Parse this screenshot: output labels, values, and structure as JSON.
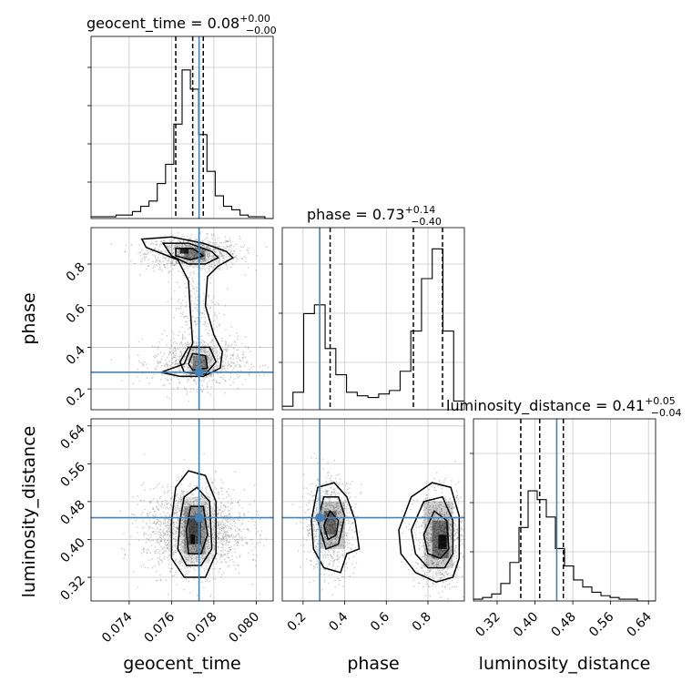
{
  "chart_data": {
    "type": "corner",
    "truth": {
      "geocent_time": 0.0773,
      "phase": 0.28,
      "luminosity_distance": 0.446
    },
    "titles": {
      "geocent_time": {
        "label": "geocent_time = ",
        "value": "0.08",
        "plus": "+0.00",
        "minus": "−0.00"
      },
      "phase": {
        "label": "phase = ",
        "value": "0.73",
        "plus": "+0.14",
        "minus": "−0.40"
      },
      "luminosity_distance": {
        "label": "luminosity_distance = ",
        "value": "0.41",
        "plus": "+0.05",
        "minus": "−0.04"
      }
    },
    "axis_labels": {
      "geocent_time": "geocent_time",
      "phase": "phase",
      "luminosity_distance": "luminosity_distance"
    },
    "ranges": {
      "geocent_time": [
        0.0722,
        0.0808
      ],
      "phase": [
        0.1,
        0.975
      ],
      "luminosity_distance": [
        0.27,
        0.655
      ]
    },
    "ticks": {
      "geocent_time": [
        "0.074",
        "0.076",
        "0.078",
        "0.080"
      ],
      "phase_x": [
        "0.2",
        "0.4",
        "0.6",
        "0.8"
      ],
      "phase_y": [
        "0.2",
        "0.4",
        "0.6",
        "0.8"
      ],
      "luminosity_distance": [
        "0.32",
        "0.40",
        "0.48",
        "0.56",
        "0.64"
      ]
    },
    "quantiles": {
      "geocent_time": [
        0.0762,
        0.077,
        0.0775
      ],
      "phase": [
        0.33,
        0.73,
        0.87
      ],
      "luminosity_distance": [
        0.37,
        0.41,
        0.46
      ]
    },
    "histograms": {
      "geocent_time": [
        0.01,
        0.01,
        0.01,
        0.02,
        0.02,
        0.04,
        0.07,
        0.1,
        0.2,
        0.31,
        0.54,
        0.85,
        0.74,
        0.48,
        0.27,
        0.13,
        0.07,
        0.05,
        0.02,
        0.01,
        0.01,
        0.0
      ],
      "phase": [
        0.02,
        0.1,
        0.55,
        0.6,
        0.35,
        0.2,
        0.1,
        0.08,
        0.07,
        0.09,
        0.11,
        0.22,
        0.45,
        0.75,
        0.92,
        0.45,
        0.05
      ],
      "luminosity_distance": [
        0.01,
        0.02,
        0.04,
        0.1,
        0.22,
        0.42,
        0.63,
        0.58,
        0.48,
        0.3,
        0.2,
        0.12,
        0.08,
        0.05,
        0.03,
        0.02,
        0.01,
        0.01,
        0.0,
        0.0
      ]
    },
    "grid": true
  }
}
